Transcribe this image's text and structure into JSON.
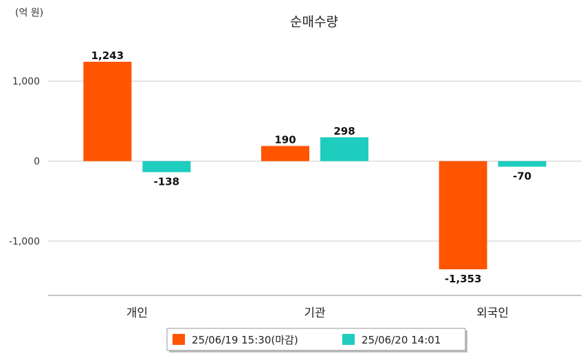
{
  "chart_data": {
    "type": "bar",
    "title": "순매수량",
    "unit_label": "(억 원)",
    "categories": [
      "개인",
      "기관",
      "외국인"
    ],
    "series": [
      {
        "name": "25/06/19 15:30(마감)",
        "color": "#ff5500",
        "values": [
          1243,
          190,
          -1353
        ],
        "labels": [
          "1,243",
          "190",
          "-1,353"
        ]
      },
      {
        "name": "25/06/20 14:01",
        "color": "#1ecdbd",
        "values": [
          -138,
          298,
          -70
        ],
        "labels": [
          "-138",
          "298",
          "-70"
        ]
      }
    ],
    "yticks": [
      1000,
      0,
      -1000
    ],
    "ytick_labels": [
      "1,000",
      "0",
      "-1,000"
    ],
    "ylim": [
      -1680,
      1500
    ],
    "grid": true,
    "legend_position": "bottom"
  }
}
